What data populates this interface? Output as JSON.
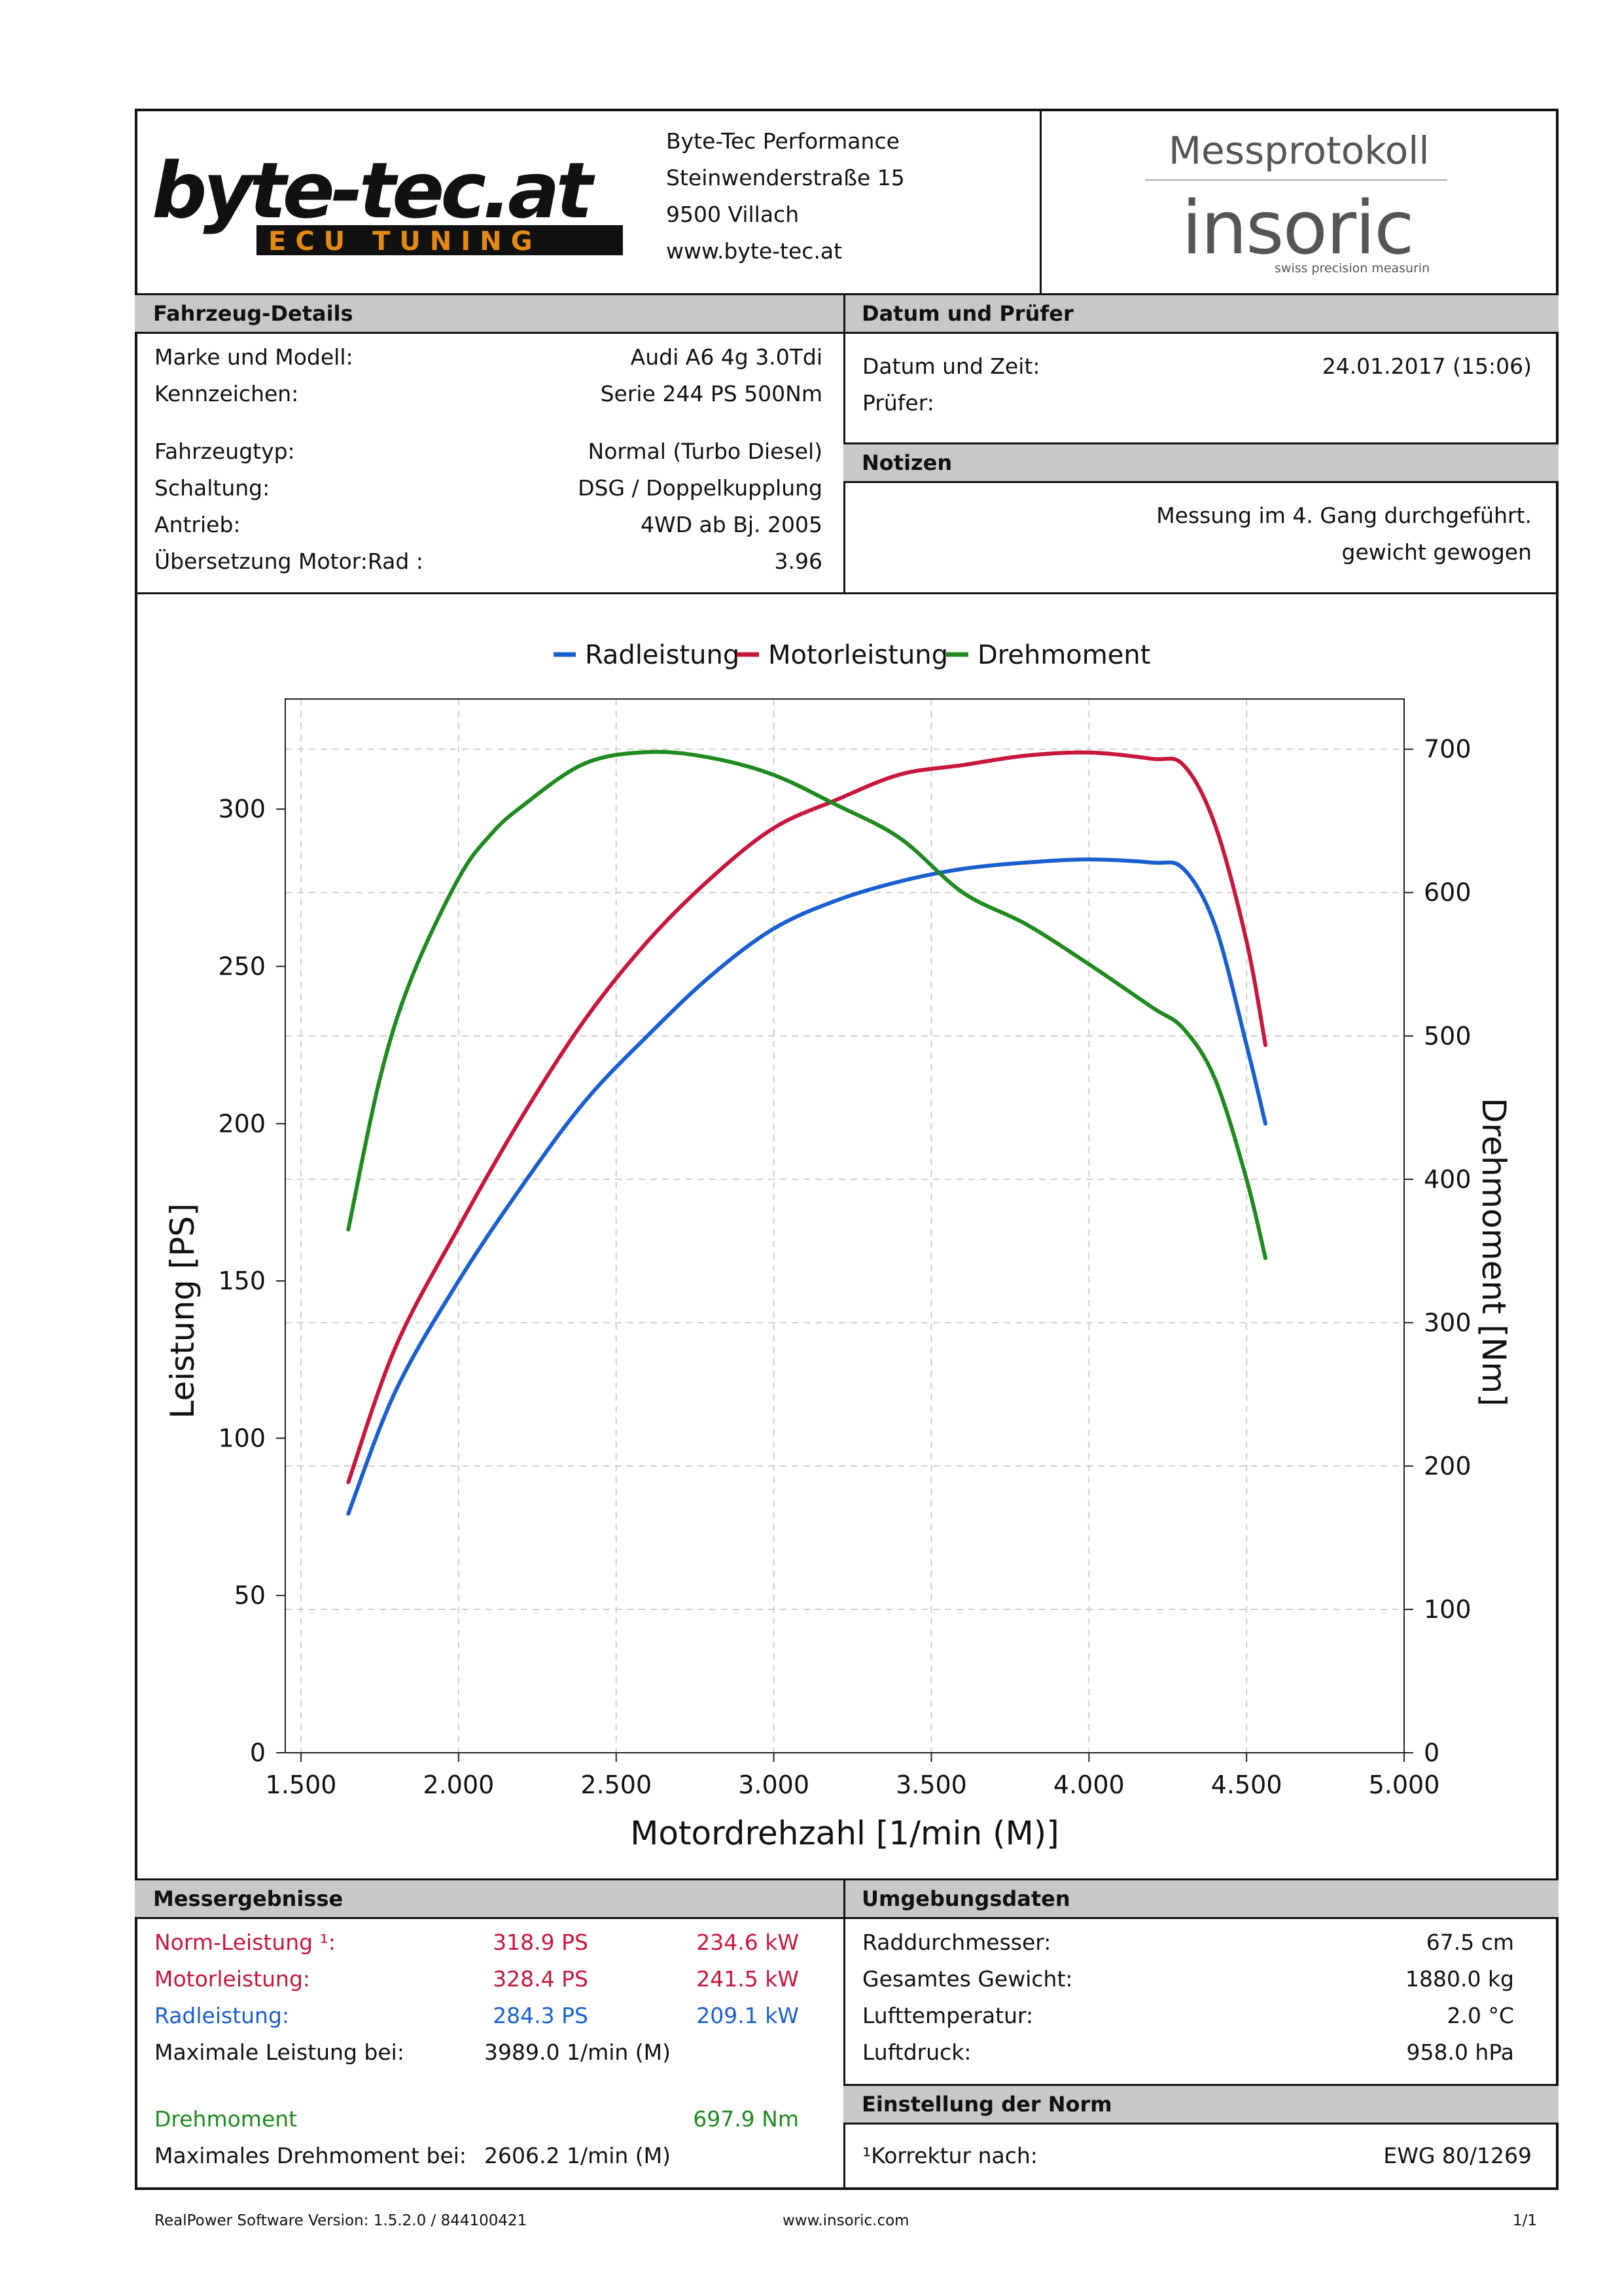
{
  "header": {
    "company_lines": [
      "Byte-Tec Performance",
      "Steinwenderstraße 15",
      "9500 Villach",
      "www.byte-tec.at"
    ],
    "logo_text_top": "byte-tec.at",
    "logo_text_bottom": "ECU TUNING",
    "protocol_title": "Messprotokoll",
    "brand": "insoric",
    "brand_sub": "swiss precision measuring"
  },
  "vehicle": {
    "heading": "Fahrzeug-Details",
    "rows": [
      {
        "label": "Marke und Modell:",
        "value": "Audi A6 4g 3.0Tdi"
      },
      {
        "label": "Kennzeichen:",
        "value": "Serie 244 PS  500Nm"
      },
      {
        "label": "Fahrzeugtyp:",
        "value": "Normal (Turbo Diesel)"
      },
      {
        "label": "Schaltung:",
        "value": "DSG / Doppelkupplung"
      },
      {
        "label": "Antrieb:",
        "value": "4WD ab Bj. 2005"
      },
      {
        "label": "Übersetzung Motor:Rad :",
        "value": "3.96"
      }
    ]
  },
  "date_inspector": {
    "heading": "Datum und Prüfer",
    "date_label": "Datum und Zeit:",
    "date_value": "24.01.2017 (15:06)",
    "inspector_label": "Prüfer:"
  },
  "notes": {
    "heading": "Notizen",
    "lines": [
      "Messung im 4. Gang durchgeführt.",
      "gewicht gewogen"
    ]
  },
  "chart_data": {
    "type": "line",
    "legend": [
      "Radleistung",
      "Motorleistung",
      "Drehmoment"
    ],
    "legend_position": "top-center",
    "xlabel": "Motordrehzahl [1/min (M)]",
    "ylabel": "Leistung [PS]",
    "y2label": "Drehmoment [Nm]",
    "xlim": [
      1450,
      5000
    ],
    "ylim": [
      0,
      335
    ],
    "y2lim": [
      0,
      735
    ],
    "xticks": [
      "1.500",
      "2.000",
      "2.500",
      "3.000",
      "3.500",
      "4.000",
      "4.500",
      "5.000"
    ],
    "xtick_values": [
      1500,
      2000,
      2500,
      3000,
      3500,
      4000,
      4500,
      5000
    ],
    "yticks": [
      0,
      50,
      100,
      150,
      200,
      250,
      300
    ],
    "y2ticks": [
      0,
      100,
      200,
      300,
      400,
      500,
      600,
      700
    ],
    "grid": true,
    "colors": {
      "Radleistung": "#1a5fd0",
      "Motorleistung": "#c8163c",
      "Drehmoment": "#1f8a1f"
    },
    "series": [
      {
        "name": "Radleistung",
        "axis": "left",
        "x": [
          1650,
          1800,
          2000,
          2200,
          2400,
          2600,
          2800,
          3000,
          3200,
          3400,
          3600,
          3800,
          4000,
          4200,
          4300,
          4400,
          4500,
          4560
        ],
        "y": [
          76,
          115,
          150,
          180,
          207,
          228,
          247,
          262,
          271,
          277,
          281,
          283,
          284,
          283,
          281,
          263,
          225,
          200
        ]
      },
      {
        "name": "Motorleistung",
        "axis": "left",
        "x": [
          1650,
          1800,
          2000,
          2200,
          2400,
          2600,
          2800,
          3000,
          3200,
          3400,
          3600,
          3800,
          4000,
          4200,
          4300,
          4400,
          4500,
          4560
        ],
        "y": [
          86,
          129,
          167,
          202,
          233,
          258,
          278,
          294,
          303,
          311,
          314,
          317,
          318,
          316,
          314,
          295,
          258,
          225
        ]
      },
      {
        "name": "Drehmoment",
        "axis": "right",
        "x": [
          1650,
          1750,
          1850,
          2000,
          2100,
          2200,
          2400,
          2606,
          2800,
          3000,
          3200,
          3400,
          3600,
          3800,
          4000,
          4200,
          4300,
          4400,
          4500,
          4560
        ],
        "y": [
          365,
          470,
          540,
          610,
          640,
          660,
          690,
          698,
          694,
          682,
          661,
          638,
          600,
          578,
          550,
          520,
          505,
          470,
          400,
          345
        ]
      }
    ]
  },
  "results": {
    "heading": "Messergebnisse",
    "rows": [
      {
        "label": "Norm-Leistung ¹:",
        "ps": "318.9 PS",
        "kw": "234.6 kW",
        "color": "#c8163c"
      },
      {
        "label": "Motorleistung:",
        "ps": "328.4 PS",
        "kw": "241.5 kW",
        "color": "#c8163c"
      },
      {
        "label": "Radleistung:",
        "ps": "284.3 PS",
        "kw": "209.1 kW",
        "color": "#1a5fd0"
      }
    ],
    "max_power_label": "Maximale Leistung bei:",
    "max_power_value": "3989.0 1/min (M)",
    "torque_label": "Drehmoment",
    "torque_value": "697.9 Nm",
    "max_torque_label": "Maximales Drehmoment bei:",
    "max_torque_value": "2606.2 1/min (M)"
  },
  "environment": {
    "heading": "Umgebungsdaten",
    "rows": [
      {
        "label": "Raddurchmesser:",
        "value": "67.5 cm"
      },
      {
        "label": "Gesamtes Gewicht:",
        "value": "1880.0 kg"
      },
      {
        "label": "Lufttemperatur:",
        "value": "2.0 °C"
      },
      {
        "label": "Luftdruck:",
        "value": "958.0 hPa"
      }
    ]
  },
  "norm": {
    "heading": "Einstellung der Norm",
    "label": "¹Korrektur nach:",
    "value": "EWG 80/1269"
  },
  "footer": {
    "software": "RealPower Software Version: 1.5.2.0 / 844100421",
    "url": "www.insoric.com",
    "page": "1/1"
  }
}
